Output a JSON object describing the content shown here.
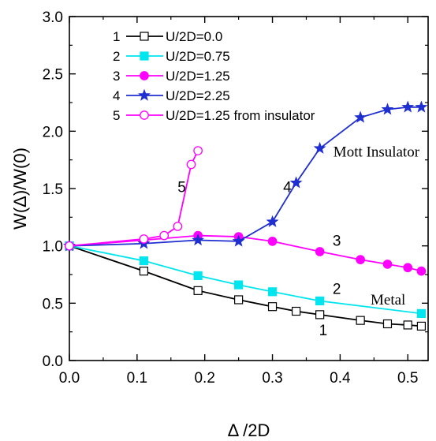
{
  "chart_data": {
    "type": "line",
    "xlabel": "Δ /2D",
    "ylabel": "W(Δ)/W(0)",
    "xlim": [
      0.0,
      0.53
    ],
    "ylim": [
      0.0,
      3.0
    ],
    "xticks": [
      "0.0",
      "0.1",
      "0.2",
      "0.3",
      "0.4",
      "0.5"
    ],
    "yticks": [
      "0.0",
      "0.5",
      "1.0",
      "1.5",
      "2.0",
      "2.5",
      "3.0"
    ],
    "legend_position": "top-left",
    "series": [
      {
        "name": "U/2D=0.0",
        "index": "1",
        "color": "#000000",
        "marker": "square",
        "filled": false,
        "x": [
          0.0,
          0.11,
          0.19,
          0.25,
          0.3,
          0.335,
          0.37,
          0.43,
          0.47,
          0.5,
          0.52
        ],
        "y": [
          1.0,
          0.78,
          0.61,
          0.53,
          0.47,
          0.43,
          0.4,
          0.35,
          0.32,
          0.31,
          0.3
        ]
      },
      {
        "name": "U/2D=0.75",
        "index": "2",
        "color": "#00e5ee",
        "marker": "square",
        "filled": true,
        "x": [
          0.0,
          0.11,
          0.19,
          0.25,
          0.3,
          0.37,
          0.52
        ],
        "y": [
          1.0,
          0.87,
          0.74,
          0.66,
          0.6,
          0.52,
          0.41
        ]
      },
      {
        "name": "U/2D=1.25",
        "index": "3",
        "color": "#ff00ff",
        "marker": "circle",
        "filled": true,
        "x": [
          0.0,
          0.11,
          0.19,
          0.25,
          0.3,
          0.37,
          0.43,
          0.47,
          0.5,
          0.52
        ],
        "y": [
          1.0,
          1.05,
          1.09,
          1.08,
          1.04,
          0.95,
          0.88,
          0.84,
          0.81,
          0.78
        ]
      },
      {
        "name": "U/2D=2.25",
        "index": "4",
        "color": "#1f2fd0",
        "marker": "star",
        "filled": true,
        "x": [
          0.0,
          0.11,
          0.19,
          0.25,
          0.3,
          0.335,
          0.37,
          0.43,
          0.47,
          0.5,
          0.52
        ],
        "y": [
          1.0,
          1.02,
          1.05,
          1.04,
          1.21,
          1.55,
          1.85,
          2.12,
          2.19,
          2.21,
          2.21
        ]
      },
      {
        "name": "U/2D=1.25 from insulator",
        "index": "5",
        "color": "#ff00ff",
        "marker": "circle",
        "filled": false,
        "x": [
          0.0,
          0.11,
          0.14,
          0.16,
          0.18,
          0.19
        ],
        "y": [
          1.0,
          1.06,
          1.09,
          1.17,
          1.71,
          1.83
        ]
      }
    ],
    "curve_labels": [
      {
        "text": "1",
        "x": 0.375,
        "y": 0.22
      },
      {
        "text": "2",
        "x": 0.395,
        "y": 0.58
      },
      {
        "text": "3",
        "x": 0.395,
        "y": 1.0
      },
      {
        "text": "4",
        "x": 0.322,
        "y": 1.47
      },
      {
        "text": "5",
        "x": 0.166,
        "y": 1.47
      }
    ],
    "annotations": [
      {
        "text": "Mott Insulator",
        "x": 0.39,
        "y": 1.78
      },
      {
        "text": "Metal",
        "x": 0.445,
        "y": 0.49
      }
    ]
  }
}
